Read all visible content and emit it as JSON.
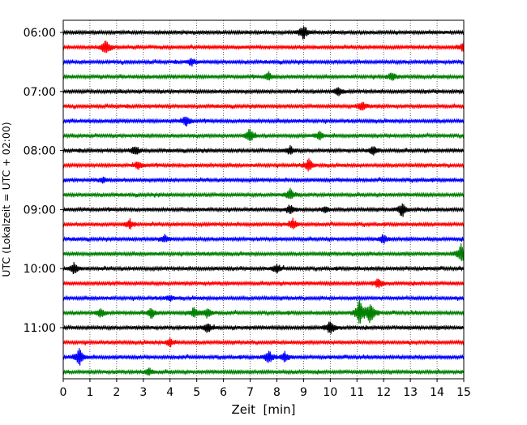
{
  "chart_data": {
    "type": "line",
    "title": "",
    "xlabel": "Zeit  [min]",
    "ylabel": "UTC (Lokalzeit = UTC + 02:00)",
    "xlim": [
      0,
      15
    ],
    "x_ticks": [
      0,
      1,
      2,
      3,
      4,
      5,
      6,
      7,
      8,
      9,
      10,
      11,
      12,
      13,
      14,
      15
    ],
    "x_tick_labels": [
      "0",
      "1",
      "2",
      "3",
      "4",
      "5",
      "6",
      "7",
      "8",
      "9",
      "10",
      "11",
      "12",
      "13",
      "14",
      "15"
    ],
    "y_tick_labels": [
      "06:00",
      "07:00",
      "08:00",
      "09:00",
      "10:00",
      "11:00"
    ],
    "y_tick_rows": [
      0,
      4,
      8,
      12,
      16,
      20
    ],
    "grid": {
      "x": true,
      "style": "dotted",
      "y": false
    },
    "row_minutes": 15,
    "start_time": "06:00",
    "color_cycle": [
      "#000000",
      "#ff0000",
      "#0000ff",
      "#008000"
    ],
    "traces": [
      {
        "start": "06:00",
        "events": [
          [
            9.0,
            1.0
          ]
        ]
      },
      {
        "start": "06:15",
        "events": [
          [
            1.6,
            1.2
          ],
          [
            15.0,
            0.8
          ]
        ]
      },
      {
        "start": "06:30",
        "events": [
          [
            4.8,
            0.5
          ]
        ]
      },
      {
        "start": "06:45",
        "events": [
          [
            7.7,
            0.6
          ],
          [
            12.3,
            0.6
          ]
        ]
      },
      {
        "start": "07:00",
        "events": [
          [
            10.3,
            0.7
          ]
        ]
      },
      {
        "start": "07:15",
        "events": [
          [
            11.2,
            0.8
          ]
        ]
      },
      {
        "start": "07:30",
        "events": [
          [
            4.6,
            0.8
          ]
        ]
      },
      {
        "start": "07:45",
        "events": [
          [
            7.0,
            0.9
          ],
          [
            9.6,
            0.6
          ]
        ]
      },
      {
        "start": "08:00",
        "events": [
          [
            2.7,
            0.7
          ],
          [
            8.5,
            0.6
          ],
          [
            11.6,
            0.6
          ]
        ]
      },
      {
        "start": "08:15",
        "events": [
          [
            2.8,
            0.6
          ],
          [
            9.2,
            0.9
          ]
        ]
      },
      {
        "start": "08:30",
        "events": [
          [
            1.5,
            0.4
          ]
        ]
      },
      {
        "start": "08:45",
        "events": [
          [
            8.5,
            0.9
          ]
        ]
      },
      {
        "start": "09:00",
        "events": [
          [
            8.5,
            0.6
          ],
          [
            9.8,
            0.5
          ],
          [
            12.7,
            1.0
          ]
        ]
      },
      {
        "start": "09:15",
        "events": [
          [
            2.5,
            0.7
          ],
          [
            8.6,
            0.7
          ]
        ]
      },
      {
        "start": "09:30",
        "events": [
          [
            3.8,
            0.5
          ],
          [
            12.0,
            0.6
          ]
        ]
      },
      {
        "start": "09:45",
        "events": [
          [
            14.9,
            1.4
          ]
        ]
      },
      {
        "start": "10:00",
        "events": [
          [
            0.4,
            0.8
          ],
          [
            8.0,
            0.6
          ]
        ]
      },
      {
        "start": "10:15",
        "events": [
          [
            11.8,
            0.8
          ]
        ]
      },
      {
        "start": "10:30",
        "events": [
          [
            4.0,
            0.4
          ]
        ]
      },
      {
        "start": "10:45",
        "events": [
          [
            1.4,
            0.7
          ],
          [
            3.3,
            0.8
          ],
          [
            4.9,
            0.7
          ],
          [
            5.4,
            0.8
          ],
          [
            11.1,
            2.0
          ],
          [
            11.5,
            1.6
          ]
        ]
      },
      {
        "start": "11:00",
        "events": [
          [
            5.4,
            0.7
          ],
          [
            10.0,
            1.1
          ]
        ]
      },
      {
        "start": "11:15",
        "events": [
          [
            4.0,
            0.6
          ]
        ]
      },
      {
        "start": "11:30",
        "events": [
          [
            0.6,
            1.3
          ],
          [
            7.7,
            0.9
          ],
          [
            8.3,
            0.7
          ]
        ]
      },
      {
        "start": "11:45",
        "events": [
          [
            3.2,
            0.6
          ]
        ]
      }
    ]
  }
}
